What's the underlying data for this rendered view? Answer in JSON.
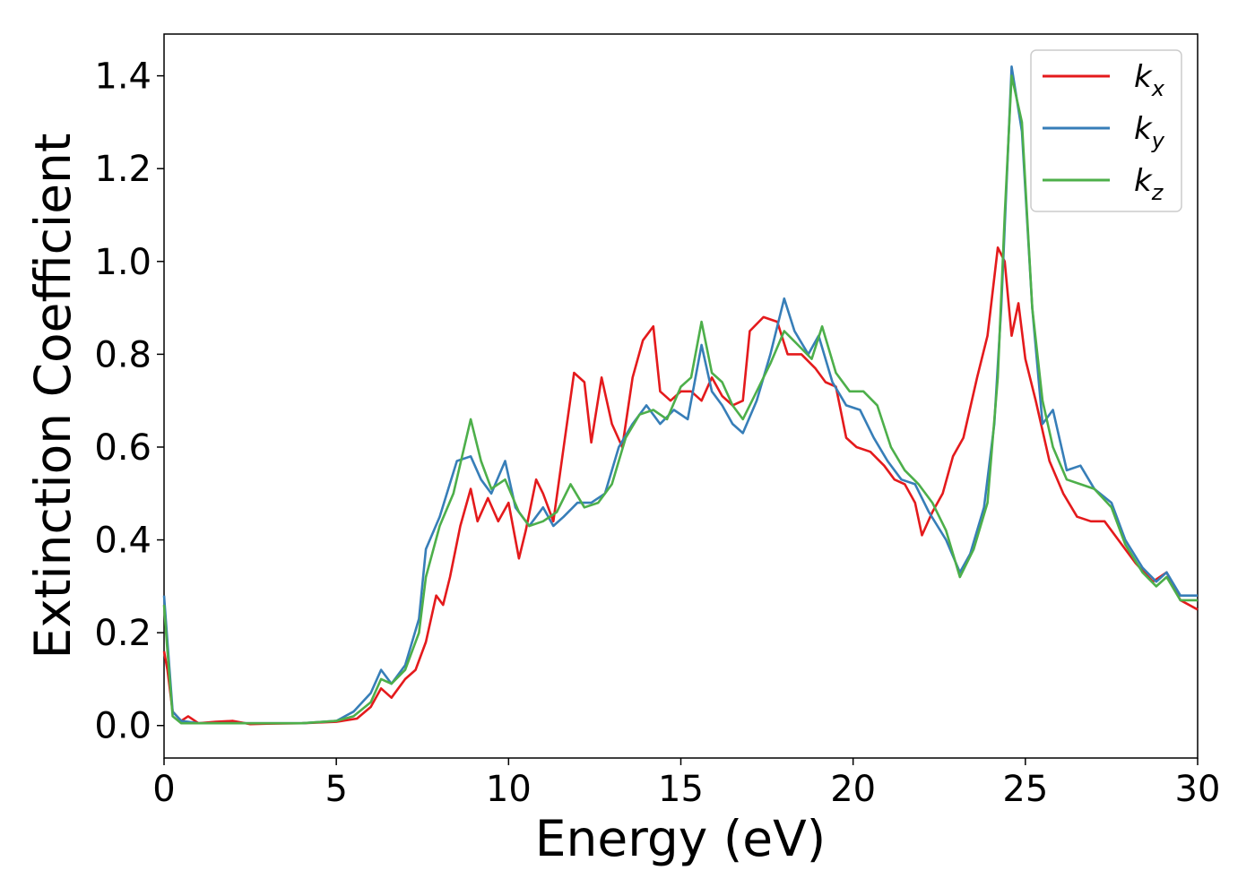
{
  "chart_data": {
    "type": "line",
    "xlabel": "Energy (eV)",
    "ylabel": "Extinction Coefficient",
    "xlim": [
      0,
      30
    ],
    "ylim": [
      -0.07,
      1.49
    ],
    "xticks": [
      0,
      5,
      10,
      15,
      20,
      25,
      30
    ],
    "yticks": [
      0.0,
      0.2,
      0.4,
      0.6,
      0.8,
      1.0,
      1.2,
      1.4
    ],
    "ytick_labels": [
      "0.0",
      "0.2",
      "0.4",
      "0.6",
      "0.8",
      "1.0",
      "1.2",
      "1.4"
    ],
    "grid": false,
    "legend_position": "top-right",
    "series": [
      {
        "name": "kx",
        "base": "k",
        "sub": "x",
        "color": "#e41a1c",
        "points": [
          [
            0,
            0.16
          ],
          [
            0.1,
            0.12
          ],
          [
            0.25,
            0.03
          ],
          [
            0.5,
            0.01
          ],
          [
            0.7,
            0.02
          ],
          [
            1.0,
            0.005
          ],
          [
            1.5,
            0.008
          ],
          [
            2.0,
            0.01
          ],
          [
            2.5,
            0.003
          ],
          [
            3.0,
            0.004
          ],
          [
            4.0,
            0.005
          ],
          [
            5.0,
            0.008
          ],
          [
            5.6,
            0.015
          ],
          [
            6.0,
            0.04
          ],
          [
            6.3,
            0.08
          ],
          [
            6.6,
            0.06
          ],
          [
            7.0,
            0.1
          ],
          [
            7.3,
            0.12
          ],
          [
            7.6,
            0.18
          ],
          [
            7.9,
            0.28
          ],
          [
            8.1,
            0.26
          ],
          [
            8.3,
            0.32
          ],
          [
            8.6,
            0.43
          ],
          [
            8.9,
            0.51
          ],
          [
            9.1,
            0.44
          ],
          [
            9.4,
            0.49
          ],
          [
            9.7,
            0.44
          ],
          [
            10.0,
            0.48
          ],
          [
            10.3,
            0.36
          ],
          [
            10.5,
            0.42
          ],
          [
            10.8,
            0.53
          ],
          [
            11.0,
            0.5
          ],
          [
            11.3,
            0.44
          ],
          [
            11.6,
            0.6
          ],
          [
            11.9,
            0.76
          ],
          [
            12.2,
            0.74
          ],
          [
            12.4,
            0.61
          ],
          [
            12.7,
            0.75
          ],
          [
            13.0,
            0.65
          ],
          [
            13.3,
            0.6
          ],
          [
            13.6,
            0.75
          ],
          [
            13.9,
            0.83
          ],
          [
            14.2,
            0.86
          ],
          [
            14.4,
            0.72
          ],
          [
            14.7,
            0.7
          ],
          [
            15.0,
            0.72
          ],
          [
            15.3,
            0.72
          ],
          [
            15.6,
            0.7
          ],
          [
            15.9,
            0.75
          ],
          [
            16.2,
            0.71
          ],
          [
            16.5,
            0.69
          ],
          [
            16.8,
            0.7
          ],
          [
            17.0,
            0.85
          ],
          [
            17.4,
            0.88
          ],
          [
            17.8,
            0.87
          ],
          [
            18.1,
            0.8
          ],
          [
            18.5,
            0.8
          ],
          [
            18.9,
            0.77
          ],
          [
            19.2,
            0.74
          ],
          [
            19.5,
            0.73
          ],
          [
            19.8,
            0.62
          ],
          [
            20.1,
            0.6
          ],
          [
            20.5,
            0.59
          ],
          [
            20.9,
            0.56
          ],
          [
            21.2,
            0.53
          ],
          [
            21.5,
            0.52
          ],
          [
            21.8,
            0.48
          ],
          [
            22.0,
            0.41
          ],
          [
            22.3,
            0.46
          ],
          [
            22.6,
            0.5
          ],
          [
            22.9,
            0.58
          ],
          [
            23.2,
            0.62
          ],
          [
            23.6,
            0.75
          ],
          [
            23.9,
            0.84
          ],
          [
            24.2,
            1.03
          ],
          [
            24.4,
            1.0
          ],
          [
            24.6,
            0.84
          ],
          [
            24.8,
            0.91
          ],
          [
            25.0,
            0.79
          ],
          [
            25.3,
            0.7
          ],
          [
            25.7,
            0.57
          ],
          [
            26.1,
            0.5
          ],
          [
            26.5,
            0.45
          ],
          [
            26.9,
            0.44
          ],
          [
            27.3,
            0.44
          ],
          [
            27.7,
            0.4
          ],
          [
            28.2,
            0.35
          ],
          [
            28.7,
            0.31
          ],
          [
            29.1,
            0.33
          ],
          [
            29.5,
            0.27
          ],
          [
            30.0,
            0.25
          ]
        ]
      },
      {
        "name": "ky",
        "base": "k",
        "sub": "y",
        "color": "#377eb8",
        "points": [
          [
            0,
            0.28
          ],
          [
            0.1,
            0.18
          ],
          [
            0.25,
            0.03
          ],
          [
            0.5,
            0.01
          ],
          [
            1.0,
            0.005
          ],
          [
            2.0,
            0.005
          ],
          [
            3.0,
            0.005
          ],
          [
            4.0,
            0.005
          ],
          [
            5.0,
            0.01
          ],
          [
            5.5,
            0.03
          ],
          [
            6.0,
            0.07
          ],
          [
            6.3,
            0.12
          ],
          [
            6.6,
            0.09
          ],
          [
            7.0,
            0.13
          ],
          [
            7.4,
            0.23
          ],
          [
            7.6,
            0.38
          ],
          [
            8.0,
            0.45
          ],
          [
            8.5,
            0.57
          ],
          [
            8.9,
            0.58
          ],
          [
            9.2,
            0.53
          ],
          [
            9.5,
            0.5
          ],
          [
            9.9,
            0.57
          ],
          [
            10.2,
            0.47
          ],
          [
            10.6,
            0.43
          ],
          [
            11.0,
            0.47
          ],
          [
            11.3,
            0.43
          ],
          [
            11.6,
            0.45
          ],
          [
            12.0,
            0.48
          ],
          [
            12.4,
            0.48
          ],
          [
            12.8,
            0.5
          ],
          [
            13.2,
            0.6
          ],
          [
            13.6,
            0.65
          ],
          [
            14.0,
            0.69
          ],
          [
            14.4,
            0.65
          ],
          [
            14.8,
            0.68
          ],
          [
            15.2,
            0.66
          ],
          [
            15.6,
            0.82
          ],
          [
            15.9,
            0.72
          ],
          [
            16.2,
            0.69
          ],
          [
            16.5,
            0.65
          ],
          [
            16.8,
            0.63
          ],
          [
            17.2,
            0.7
          ],
          [
            17.6,
            0.8
          ],
          [
            18.0,
            0.92
          ],
          [
            18.3,
            0.85
          ],
          [
            18.7,
            0.8
          ],
          [
            19.0,
            0.84
          ],
          [
            19.4,
            0.74
          ],
          [
            19.8,
            0.69
          ],
          [
            20.2,
            0.68
          ],
          [
            20.6,
            0.62
          ],
          [
            21.0,
            0.57
          ],
          [
            21.4,
            0.53
          ],
          [
            21.8,
            0.52
          ],
          [
            22.2,
            0.46
          ],
          [
            22.7,
            0.4
          ],
          [
            23.1,
            0.33
          ],
          [
            23.4,
            0.37
          ],
          [
            23.8,
            0.47
          ],
          [
            24.1,
            0.65
          ],
          [
            24.3,
            0.9
          ],
          [
            24.6,
            1.42
          ],
          [
            24.9,
            1.28
          ],
          [
            25.2,
            0.9
          ],
          [
            25.5,
            0.65
          ],
          [
            25.8,
            0.68
          ],
          [
            26.2,
            0.55
          ],
          [
            26.6,
            0.56
          ],
          [
            27.0,
            0.51
          ],
          [
            27.5,
            0.48
          ],
          [
            27.9,
            0.4
          ],
          [
            28.4,
            0.34
          ],
          [
            28.8,
            0.31
          ],
          [
            29.1,
            0.33
          ],
          [
            29.5,
            0.28
          ],
          [
            30.0,
            0.28
          ]
        ]
      },
      {
        "name": "kz",
        "base": "k",
        "sub": "z",
        "color": "#4daf4a",
        "points": [
          [
            0,
            0.26
          ],
          [
            0.1,
            0.16
          ],
          [
            0.25,
            0.02
          ],
          [
            0.5,
            0.005
          ],
          [
            1.0,
            0.005
          ],
          [
            2.0,
            0.005
          ],
          [
            3.0,
            0.005
          ],
          [
            4.0,
            0.005
          ],
          [
            5.0,
            0.01
          ],
          [
            5.5,
            0.02
          ],
          [
            6.0,
            0.05
          ],
          [
            6.3,
            0.1
          ],
          [
            6.6,
            0.09
          ],
          [
            7.0,
            0.12
          ],
          [
            7.4,
            0.2
          ],
          [
            7.6,
            0.32
          ],
          [
            8.0,
            0.43
          ],
          [
            8.4,
            0.5
          ],
          [
            8.9,
            0.66
          ],
          [
            9.2,
            0.57
          ],
          [
            9.5,
            0.51
          ],
          [
            9.9,
            0.53
          ],
          [
            10.3,
            0.46
          ],
          [
            10.6,
            0.43
          ],
          [
            11.0,
            0.44
          ],
          [
            11.4,
            0.46
          ],
          [
            11.8,
            0.52
          ],
          [
            12.2,
            0.47
          ],
          [
            12.6,
            0.48
          ],
          [
            13.0,
            0.52
          ],
          [
            13.4,
            0.62
          ],
          [
            13.8,
            0.67
          ],
          [
            14.2,
            0.68
          ],
          [
            14.6,
            0.66
          ],
          [
            15.0,
            0.73
          ],
          [
            15.3,
            0.75
          ],
          [
            15.6,
            0.87
          ],
          [
            15.9,
            0.76
          ],
          [
            16.2,
            0.74
          ],
          [
            16.5,
            0.69
          ],
          [
            16.8,
            0.66
          ],
          [
            17.2,
            0.72
          ],
          [
            17.6,
            0.78
          ],
          [
            18.0,
            0.85
          ],
          [
            18.4,
            0.82
          ],
          [
            18.8,
            0.79
          ],
          [
            19.1,
            0.86
          ],
          [
            19.5,
            0.76
          ],
          [
            19.9,
            0.72
          ],
          [
            20.3,
            0.72
          ],
          [
            20.7,
            0.69
          ],
          [
            21.1,
            0.6
          ],
          [
            21.5,
            0.55
          ],
          [
            21.9,
            0.52
          ],
          [
            22.3,
            0.48
          ],
          [
            22.7,
            0.42
          ],
          [
            23.1,
            0.32
          ],
          [
            23.5,
            0.38
          ],
          [
            23.9,
            0.48
          ],
          [
            24.2,
            0.75
          ],
          [
            24.4,
            1.1
          ],
          [
            24.6,
            1.4
          ],
          [
            24.9,
            1.3
          ],
          [
            25.2,
            0.9
          ],
          [
            25.5,
            0.7
          ],
          [
            25.8,
            0.6
          ],
          [
            26.2,
            0.53
          ],
          [
            26.6,
            0.52
          ],
          [
            27.0,
            0.51
          ],
          [
            27.5,
            0.47
          ],
          [
            27.9,
            0.39
          ],
          [
            28.4,
            0.33
          ],
          [
            28.8,
            0.3
          ],
          [
            29.1,
            0.32
          ],
          [
            29.5,
            0.27
          ],
          [
            30.0,
            0.27
          ]
        ]
      }
    ]
  }
}
